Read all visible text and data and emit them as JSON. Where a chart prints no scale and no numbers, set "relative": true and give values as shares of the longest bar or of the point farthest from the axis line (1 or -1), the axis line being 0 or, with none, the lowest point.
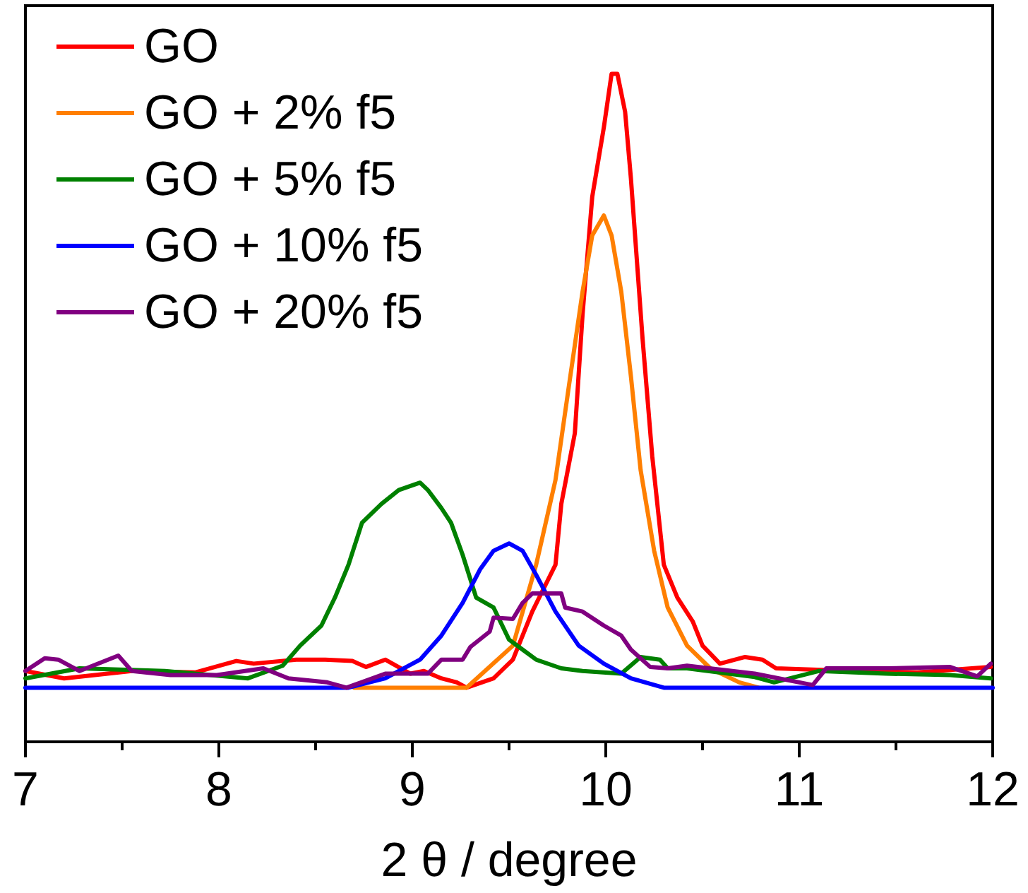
{
  "chart_data": {
    "type": "line",
    "xlabel": "2 θ / degree",
    "relative": true,
    "legend": "top left",
    "tick_labels": "x",
    "xlim": [
      7,
      12
    ],
    "xticks": [
      7,
      {
        "value": 7.5,
        "label": null
      },
      8,
      {
        "value": 8.5,
        "label": null
      },
      9,
      {
        "value": 9.5,
        "label": null
      },
      10,
      {
        "value": 10.5,
        "label": null
      },
      11,
      {
        "value": 11.5,
        "label": null
      },
      12
    ],
    "series": [
      {
        "name": "GO",
        "color": "#ff0000",
        "x": [
          7.0,
          7.2,
          7.55,
          7.88,
          8.09,
          8.18,
          8.4,
          8.55,
          8.69,
          8.76,
          8.86,
          8.99,
          9.06,
          9.15,
          9.23,
          9.28,
          9.42,
          9.52,
          9.62,
          9.74,
          9.77,
          9.84,
          9.88,
          9.93,
          9.99,
          10.03,
          10.06,
          10.1,
          10.13,
          10.19,
          10.24,
          10.3,
          10.37,
          10.45,
          10.5,
          10.59,
          10.72,
          10.81,
          10.88,
          11.28,
          11.61,
          11.99
        ],
        "values": [
          0.106,
          0.095,
          0.106,
          0.104,
          0.121,
          0.117,
          0.123,
          0.123,
          0.121,
          0.112,
          0.123,
          0.102,
          0.106,
          0.095,
          0.089,
          0.081,
          0.095,
          0.123,
          0.195,
          0.265,
          0.356,
          0.462,
          0.64,
          0.816,
          0.92,
          1.0,
          1.0,
          0.943,
          0.843,
          0.604,
          0.428,
          0.265,
          0.216,
          0.18,
          0.144,
          0.117,
          0.127,
          0.123,
          0.11,
          0.106,
          0.104,
          0.112
        ]
      },
      {
        "name": "GO + 2% f5",
        "color": "#ff7f00",
        "x": [
          8.7,
          9.28,
          9.52,
          9.64,
          9.74,
          9.81,
          9.88,
          9.93,
          9.99,
          10.03,
          10.08,
          10.13,
          10.18,
          10.25,
          10.32,
          10.42,
          10.54,
          10.69,
          10.79
        ],
        "values": [
          0.081,
          0.081,
          0.144,
          0.265,
          0.392,
          0.534,
          0.674,
          0.758,
          0.788,
          0.758,
          0.674,
          0.547,
          0.407,
          0.286,
          0.201,
          0.144,
          0.11,
          0.089,
          0.081
        ]
      },
      {
        "name": "GO + 5% f5",
        "color": "#008000",
        "x": [
          7.0,
          7.28,
          7.72,
          8.15,
          8.33,
          8.42,
          8.53,
          8.6,
          8.67,
          8.74,
          8.84,
          8.93,
          9.04,
          9.08,
          9.15,
          9.2,
          9.26,
          9.33,
          9.42,
          9.5,
          9.57,
          9.64,
          9.77,
          9.88,
          10.08,
          10.18,
          10.28,
          10.32,
          10.42,
          10.77,
          10.87,
          11.1,
          11.45,
          11.78,
          11.99
        ],
        "values": [
          0.095,
          0.11,
          0.106,
          0.095,
          0.114,
          0.144,
          0.174,
          0.216,
          0.265,
          0.328,
          0.356,
          0.377,
          0.388,
          0.377,
          0.35,
          0.328,
          0.28,
          0.216,
          0.201,
          0.153,
          0.138,
          0.123,
          0.11,
          0.106,
          0.102,
          0.127,
          0.123,
          0.11,
          0.11,
          0.097,
          0.089,
          0.106,
          0.102,
          0.1,
          0.095
        ]
      },
      {
        "name": "GO + 10% f5",
        "color": "#0000ff",
        "x": [
          7.0,
          8.4,
          8.67,
          8.86,
          9.04,
          9.15,
          9.26,
          9.35,
          9.42,
          9.5,
          9.57,
          9.64,
          9.74,
          9.86,
          9.99,
          10.13,
          10.3,
          12.0
        ],
        "values": [
          0.081,
          0.081,
          0.081,
          0.095,
          0.123,
          0.159,
          0.208,
          0.258,
          0.286,
          0.297,
          0.286,
          0.25,
          0.195,
          0.144,
          0.117,
          0.095,
          0.081,
          0.081
        ]
      },
      {
        "name": "GO + 20% f5",
        "color": "#800080",
        "x": [
          7.0,
          7.1,
          7.17,
          7.28,
          7.48,
          7.55,
          7.75,
          7.99,
          8.23,
          8.36,
          8.56,
          8.66,
          8.86,
          9.08,
          9.15,
          9.26,
          9.3,
          9.4,
          9.42,
          9.52,
          9.57,
          9.62,
          9.69,
          9.77,
          9.79,
          9.88,
          9.99,
          10.08,
          10.13,
          10.23,
          10.32,
          10.42,
          10.77,
          11.07,
          11.14,
          11.45,
          11.78,
          11.92,
          11.99
        ],
        "values": [
          0.106,
          0.125,
          0.123,
          0.106,
          0.129,
          0.106,
          0.1,
          0.1,
          0.11,
          0.095,
          0.089,
          0.081,
          0.102,
          0.102,
          0.123,
          0.123,
          0.142,
          0.165,
          0.186,
          0.184,
          0.208,
          0.222,
          0.222,
          0.222,
          0.201,
          0.195,
          0.174,
          0.159,
          0.138,
          0.112,
          0.11,
          0.114,
          0.102,
          0.085,
          0.11,
          0.11,
          0.112,
          0.098,
          0.117
        ]
      }
    ]
  }
}
